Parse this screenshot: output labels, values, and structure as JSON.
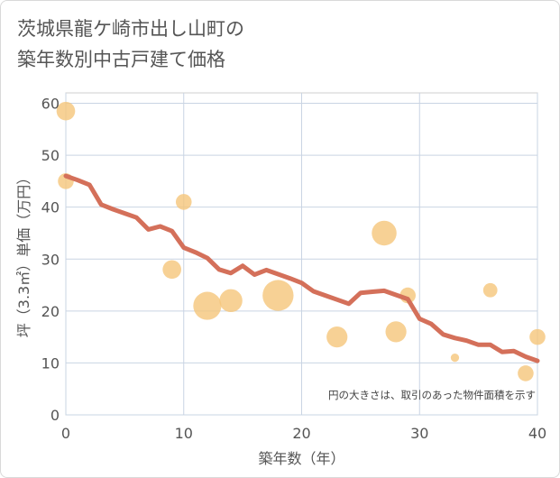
{
  "chart_data": {
    "type": "scatter",
    "title": "茨城県龍ケ崎市出し山町の\n築年数別中古戸建て価格",
    "xlabel": "築年数（年）",
    "ylabel": "坪（3.3㎡）単価（万円）",
    "xlim": [
      0,
      40
    ],
    "ylim": [
      0,
      62
    ],
    "xticks": [
      "0",
      "10",
      "20",
      "30",
      "40"
    ],
    "yticks": [
      "0",
      "10",
      "20",
      "30",
      "40",
      "50",
      "60"
    ],
    "grid": true,
    "annotation": "円の大きさは、取引のあった物件面積を示す",
    "bubble_color": "#f5c57a",
    "line_color": "#d4705a",
    "points": [
      {
        "x": 0,
        "y": 58.5,
        "size": 3
      },
      {
        "x": 0,
        "y": 45,
        "size": 2
      },
      {
        "x": 9,
        "y": 28,
        "size": 3
      },
      {
        "x": 10,
        "y": 41,
        "size": 2
      },
      {
        "x": 12,
        "y": 21,
        "size": 8
      },
      {
        "x": 14,
        "y": 22,
        "size": 5
      },
      {
        "x": 18,
        "y": 23,
        "size": 10
      },
      {
        "x": 23,
        "y": 15,
        "size": 4
      },
      {
        "x": 27,
        "y": 35,
        "size": 6
      },
      {
        "x": 28,
        "y": 16,
        "size": 4
      },
      {
        "x": 29,
        "y": 23,
        "size": 2
      },
      {
        "x": 33,
        "y": 11,
        "size": 0.3
      },
      {
        "x": 36,
        "y": 24,
        "size": 1.5
      },
      {
        "x": 39,
        "y": 8,
        "size": 2
      },
      {
        "x": 40,
        "y": 15,
        "size": 2
      }
    ],
    "trend": {
      "x": [
        0,
        1,
        2,
        3,
        4,
        5,
        6,
        7,
        8,
        9,
        10,
        11,
        12,
        13,
        14,
        15,
        16,
        17,
        18,
        19,
        20,
        21,
        22,
        23,
        24,
        25,
        26,
        27,
        28,
        29,
        30,
        31,
        32,
        33,
        34,
        35,
        36,
        37,
        38,
        39,
        40
      ],
      "y": [
        46,
        45.2,
        44.3,
        40.5,
        39.6,
        38.8,
        38,
        35.7,
        36.3,
        35.4,
        32.2,
        31.3,
        30.2,
        28,
        27.3,
        28.7,
        27,
        27.9,
        27.1,
        26.3,
        25.4,
        23.8,
        23,
        22.2,
        21.4,
        23.5,
        23.7,
        23.9,
        23.1,
        22.3,
        18.5,
        17.5,
        15.5,
        14.8,
        14.3,
        13.5,
        13.5,
        12.1,
        12.3,
        11.2,
        10.4
      ]
    }
  }
}
